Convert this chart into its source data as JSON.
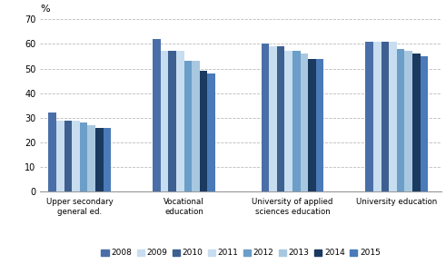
{
  "categories": [
    "Upper secondary\ngeneral ed.",
    "Vocational\neducation",
    "University of applied\nsciences education",
    "University education"
  ],
  "years": [
    "2008",
    "2009",
    "2010",
    "2011",
    "2012",
    "2013",
    "2014",
    "2015"
  ],
  "year_colors": [
    "#4f6eb4",
    "#c5d9ee",
    "#4f6eb4",
    "#c5d9ee",
    "#6b9fc8",
    "#c5d9ee",
    "#1e3a5f",
    "#4f82bd"
  ],
  "values": {
    "Upper secondary\ngeneral ed.": [
      32,
      29,
      29,
      29,
      28,
      27,
      26,
      26
    ],
    "Vocational\neducation": [
      62,
      57,
      57,
      57,
      53,
      53,
      49,
      48
    ],
    "University of applied\nsciences education": [
      60,
      59,
      59,
      57,
      57,
      56,
      54,
      54
    ],
    "University education": [
      61,
      61,
      61,
      61,
      58,
      57,
      56,
      55
    ]
  },
  "ylim": [
    0,
    70
  ],
  "yticks": [
    0,
    10,
    20,
    30,
    40,
    50,
    60,
    70
  ],
  "ylabel": "%",
  "background_color": "#ffffff",
  "grid_color": "#bbbbbb"
}
